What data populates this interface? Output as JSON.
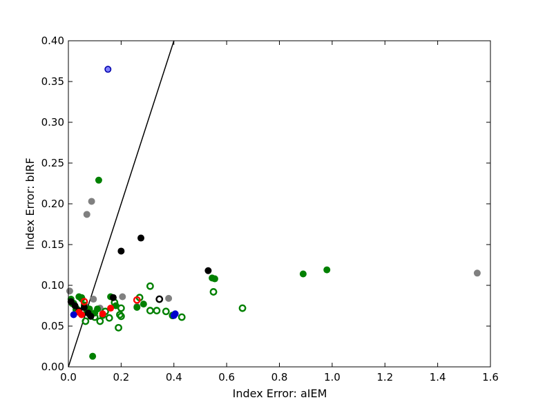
{
  "chart_data": {
    "type": "scatter",
    "title": "",
    "xlabel": "Index Error: aIEM",
    "ylabel": "Index Error: bIRF",
    "xlim": [
      0.0,
      1.6
    ],
    "ylim": [
      0.0,
      0.4
    ],
    "x_ticks": [
      "0.0",
      "0.2",
      "0.4",
      "0.6",
      "0.8",
      "1.0",
      "1.2",
      "1.4",
      "1.6"
    ],
    "y_ticks": [
      "0.00",
      "0.05",
      "0.10",
      "0.15",
      "0.20",
      "0.25",
      "0.30",
      "0.35",
      "0.40"
    ],
    "grid": false,
    "legend": "none",
    "reference_line": {
      "x": [
        0.0,
        0.4
      ],
      "y": [
        0.0,
        0.4
      ],
      "color": "#000000"
    },
    "series": [
      {
        "color": "#808080",
        "marker": "filled",
        "points": [
          [
            0.005,
            0.093
          ],
          [
            0.07,
            0.187
          ],
          [
            0.088,
            0.203
          ],
          [
            0.095,
            0.083
          ],
          [
            0.12,
            0.072
          ],
          [
            0.205,
            0.086
          ],
          [
            0.26,
            0.074
          ],
          [
            0.38,
            0.084
          ],
          [
            1.55,
            0.115
          ]
        ]
      },
      {
        "color": "#008000",
        "marker": "filled",
        "points": [
          [
            0.01,
            0.083
          ],
          [
            0.02,
            0.078
          ],
          [
            0.03,
            0.072
          ],
          [
            0.04,
            0.086
          ],
          [
            0.05,
            0.085
          ],
          [
            0.06,
            0.076
          ],
          [
            0.07,
            0.069
          ],
          [
            0.08,
            0.071
          ],
          [
            0.092,
            0.013
          ],
          [
            0.1,
            0.066
          ],
          [
            0.11,
            0.071
          ],
          [
            0.115,
            0.229
          ],
          [
            0.13,
            0.063
          ],
          [
            0.16,
            0.086
          ],
          [
            0.18,
            0.075
          ],
          [
            0.26,
            0.073
          ],
          [
            0.285,
            0.077
          ],
          [
            0.545,
            0.109
          ],
          [
            0.555,
            0.108
          ],
          [
            0.89,
            0.114
          ],
          [
            0.98,
            0.119
          ]
        ]
      },
      {
        "color": "#008000",
        "marker": "hollow",
        "points": [
          [
            0.015,
            0.078
          ],
          [
            0.03,
            0.07
          ],
          [
            0.05,
            0.084
          ],
          [
            0.065,
            0.056
          ],
          [
            0.08,
            0.065
          ],
          [
            0.1,
            0.061
          ],
          [
            0.12,
            0.056
          ],
          [
            0.14,
            0.068
          ],
          [
            0.155,
            0.06
          ],
          [
            0.175,
            0.079
          ],
          [
            0.19,
            0.048
          ],
          [
            0.195,
            0.064
          ],
          [
            0.2,
            0.062
          ],
          [
            0.2,
            0.072
          ],
          [
            0.27,
            0.085
          ],
          [
            0.31,
            0.099
          ],
          [
            0.31,
            0.069
          ],
          [
            0.335,
            0.069
          ],
          [
            0.37,
            0.068
          ],
          [
            0.395,
            0.063
          ],
          [
            0.43,
            0.061
          ],
          [
            0.55,
            0.092
          ],
          [
            0.66,
            0.072
          ]
        ]
      },
      {
        "color": "#000000",
        "marker": "filled",
        "points": [
          [
            0.01,
            0.08
          ],
          [
            0.025,
            0.075
          ],
          [
            0.04,
            0.069
          ],
          [
            0.06,
            0.073
          ],
          [
            0.075,
            0.066
          ],
          [
            0.085,
            0.062
          ],
          [
            0.17,
            0.085
          ],
          [
            0.2,
            0.142
          ],
          [
            0.275,
            0.158
          ],
          [
            0.53,
            0.118
          ]
        ]
      },
      {
        "color": "#000000",
        "marker": "hollow",
        "points": [
          [
            0.345,
            0.083
          ]
        ]
      },
      {
        "color": "#ff0000",
        "marker": "filled",
        "points": [
          [
            0.04,
            0.067
          ],
          [
            0.05,
            0.064
          ],
          [
            0.13,
            0.065
          ],
          [
            0.16,
            0.072
          ]
        ]
      },
      {
        "color": "#ff0000",
        "marker": "hollow",
        "points": [
          [
            0.06,
            0.08
          ],
          [
            0.26,
            0.082
          ]
        ]
      },
      {
        "color": "#0000cc",
        "marker": "filled",
        "points": [
          [
            0.02,
            0.064
          ],
          [
            0.4,
            0.063
          ],
          [
            0.405,
            0.065
          ]
        ]
      },
      {
        "color": "#8080ff",
        "marker": "outlined-blue",
        "points": [
          [
            0.15,
            0.365
          ]
        ]
      }
    ]
  }
}
